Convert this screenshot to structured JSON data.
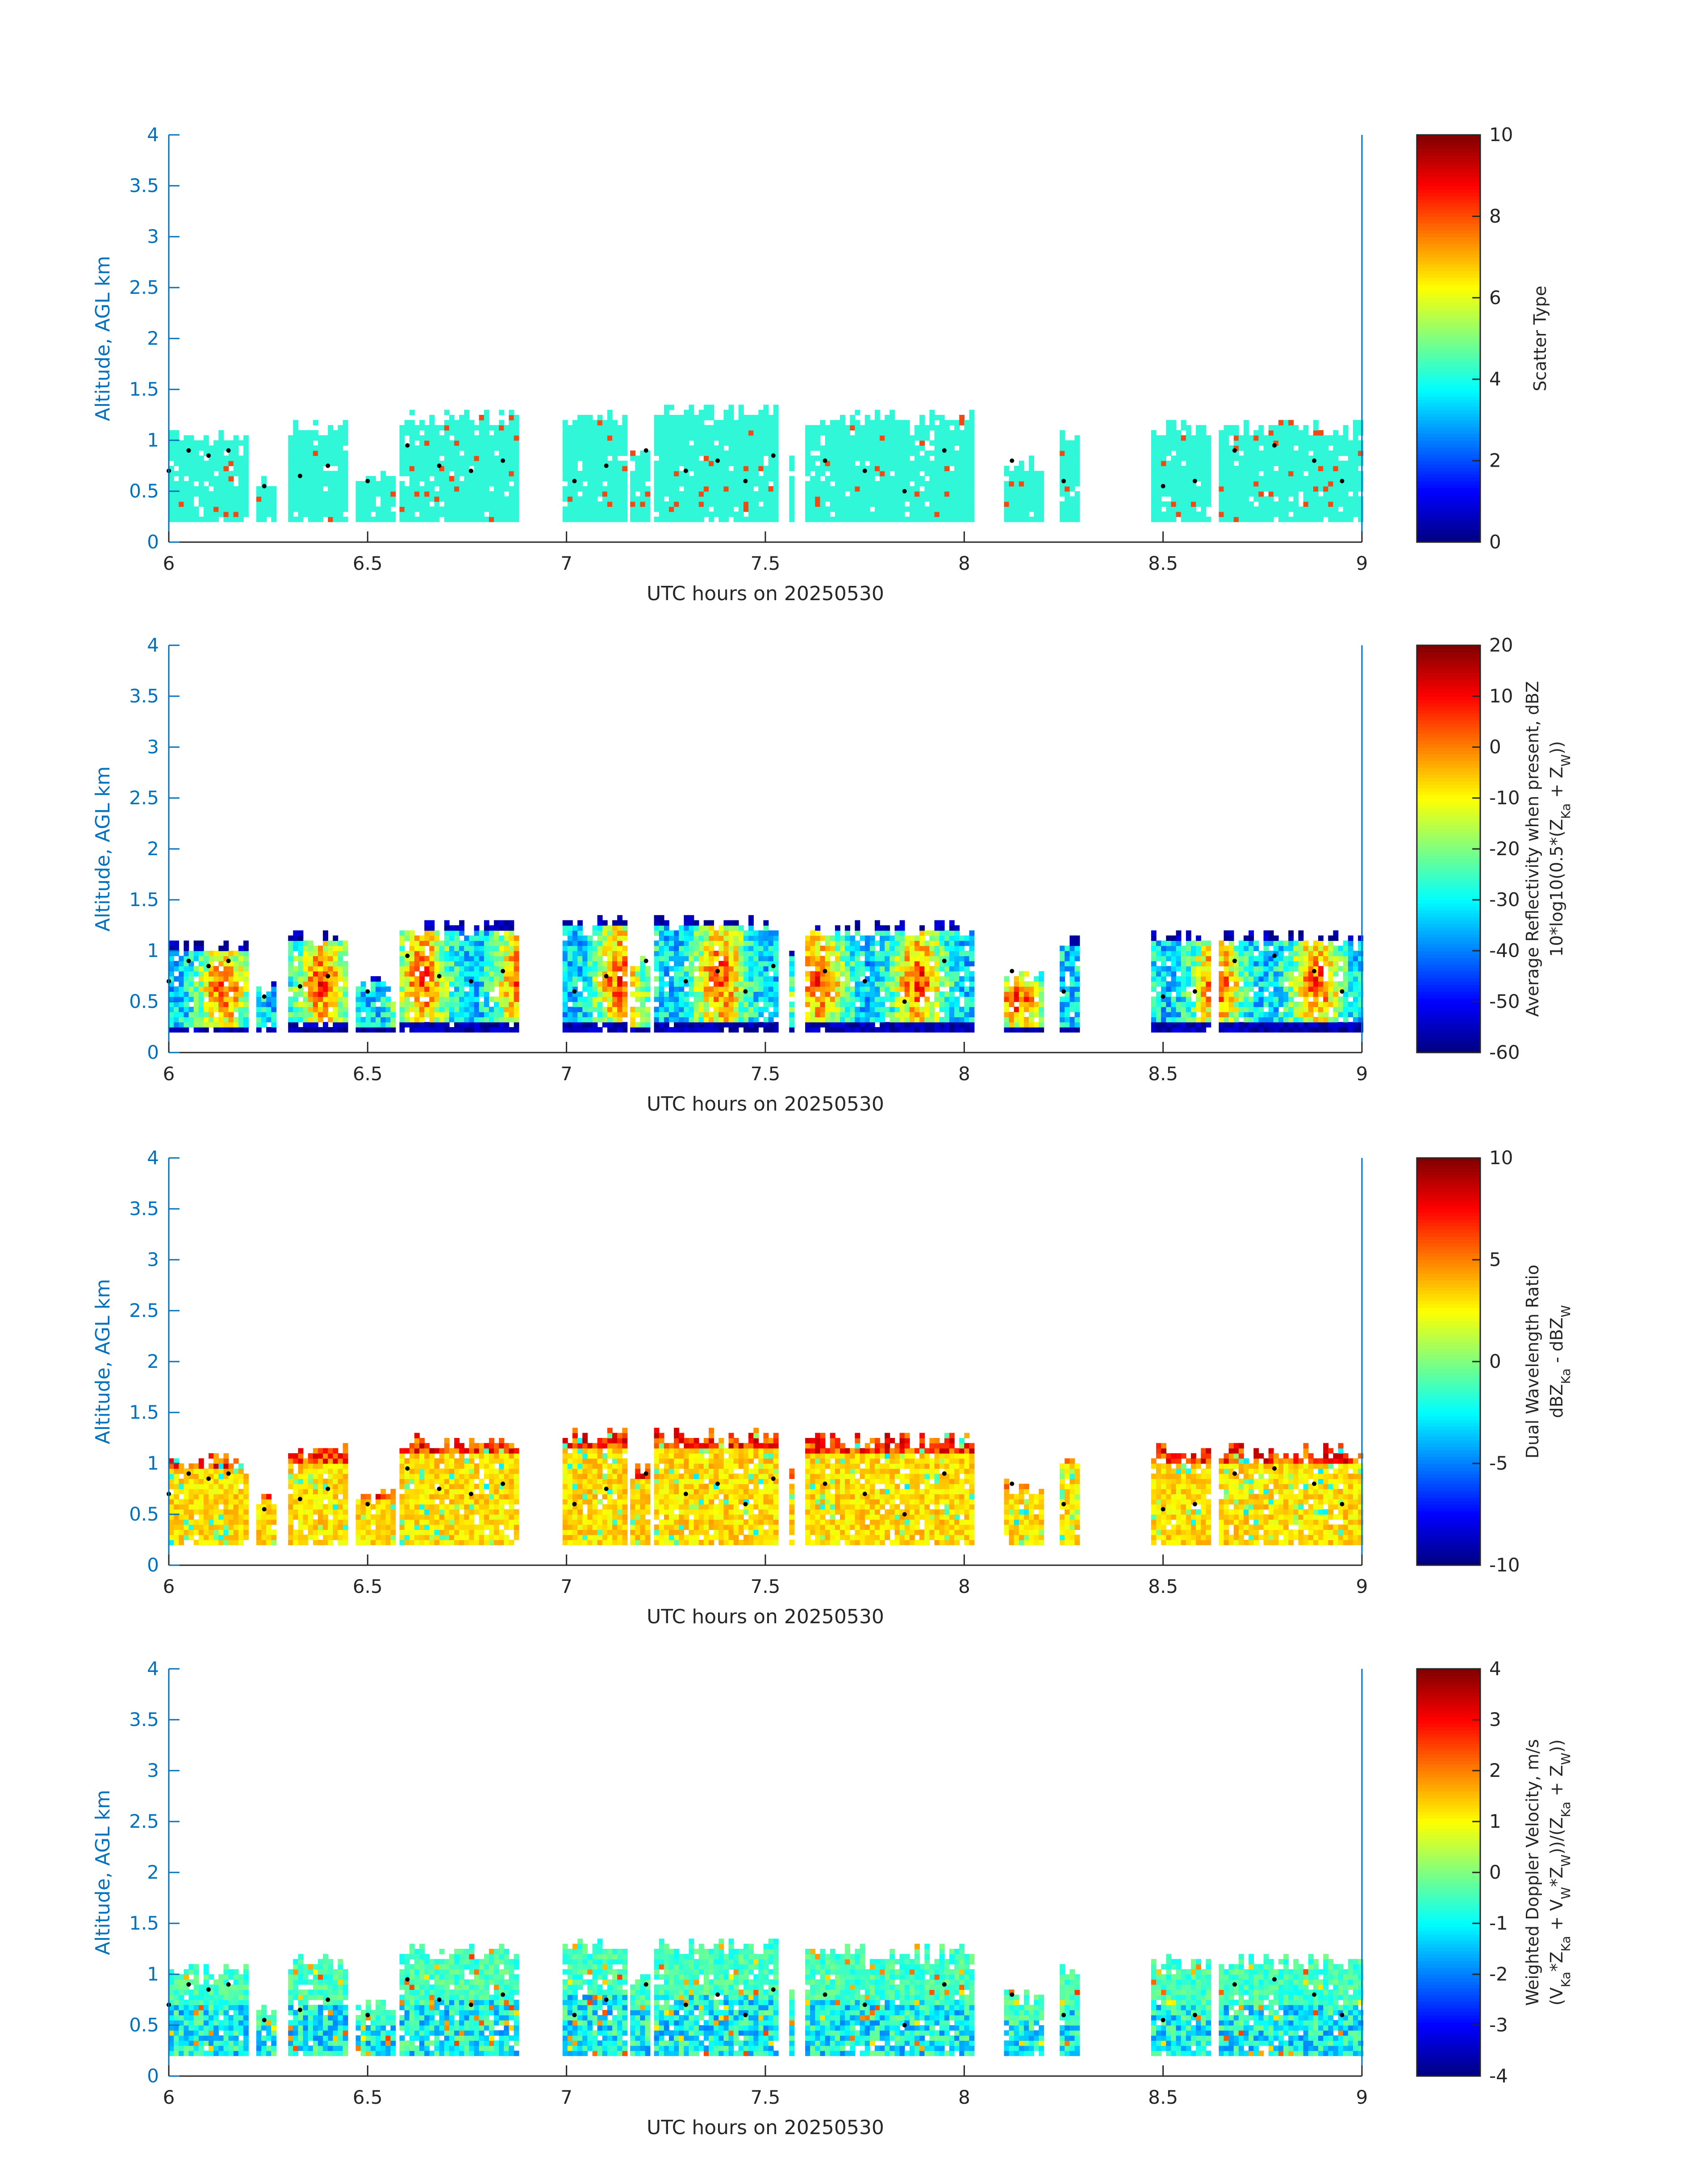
{
  "colors": {
    "axis_blue": "#0072BD",
    "axis_black": "#262626",
    "scatter_cyan": "#2ff7d8",
    "scatter_orange": "#ef4a14",
    "dot": "#000000"
  },
  "colormap": "jet",
  "chart_data": [
    {
      "type": "heatmap",
      "title": "",
      "xlabel": "UTC hours on 20250530",
      "ylabel": "Altitude, AGL km",
      "xlim": [
        6,
        9
      ],
      "ylim": [
        0,
        4
      ],
      "xticks": [
        "6",
        "6.5",
        "7",
        "7.5",
        "8",
        "8.5",
        "9"
      ],
      "yticks": [
        "0",
        "0.5",
        "1",
        "1.5",
        "2",
        "2.5",
        "3",
        "3.5",
        "4"
      ],
      "colorbar": {
        "label": [
          "Scatter Type"
        ],
        "range": [
          0,
          10
        ],
        "ticks": [
          "0",
          "2",
          "4",
          "6",
          "8",
          "10"
        ]
      },
      "seed": 11
    },
    {
      "type": "heatmap",
      "title": "",
      "xlabel": "UTC hours on 20250530",
      "ylabel": "Altitude, AGL km",
      "xlim": [
        6,
        9
      ],
      "ylim": [
        0,
        4
      ],
      "xticks": [
        "6",
        "6.5",
        "7",
        "7.5",
        "8",
        "8.5",
        "9"
      ],
      "yticks": [
        "0",
        "0.5",
        "1",
        "1.5",
        "2",
        "2.5",
        "3",
        "3.5",
        "4"
      ],
      "colorbar": {
        "label": [
          "Average Reflectivity when present, dBZ",
          "10*log10(0.5*(Z_Ka + Z_W))"
        ],
        "range": [
          -60,
          20
        ],
        "ticks": [
          "-60",
          "-50",
          "-40",
          "-30",
          "-20",
          "-10",
          "0",
          "10",
          "20"
        ]
      },
      "seed": 23
    },
    {
      "type": "heatmap",
      "title": "",
      "xlabel": "UTC hours on 20250530",
      "ylabel": "Altitude, AGL km",
      "xlim": [
        6,
        9
      ],
      "ylim": [
        0,
        4
      ],
      "xticks": [
        "6",
        "6.5",
        "7",
        "7.5",
        "8",
        "8.5",
        "9"
      ],
      "yticks": [
        "0",
        "0.5",
        "1",
        "1.5",
        "2",
        "2.5",
        "3",
        "3.5",
        "4"
      ],
      "colorbar": {
        "label": [
          "Dual Wavelength Ratio",
          "dBZ_Ka - dBZ_W"
        ],
        "range": [
          -10,
          10
        ],
        "ticks": [
          "-10",
          "-5",
          "0",
          "5",
          "10"
        ]
      },
      "seed": 37
    },
    {
      "type": "heatmap",
      "title": "",
      "xlabel": "UTC hours on 20250530",
      "ylabel": "Altitude, AGL km",
      "xlim": [
        6,
        9
      ],
      "ylim": [
        0,
        4
      ],
      "xticks": [
        "6",
        "6.5",
        "7",
        "7.5",
        "8",
        "8.5",
        "9"
      ],
      "yticks": [
        "0",
        "0.5",
        "1",
        "1.5",
        "2",
        "2.5",
        "3",
        "3.5",
        "4"
      ],
      "colorbar": {
        "label": [
          "Weighted Doppler Velocity, m/s",
          "(V_Ka*Z_Ka + V_W*Z_W))/(Z_Ka + Z_W))"
        ],
        "range": [
          -4,
          4
        ],
        "ticks": [
          "-4",
          "-3",
          "-2",
          "-1",
          "0",
          "1",
          "2",
          "3",
          "4"
        ]
      },
      "seed": 53
    }
  ],
  "cloud_layer": {
    "time_step_h": 0.0125,
    "gate_km": 0.05,
    "base_km": 0.2,
    "segments": [
      {
        "x0": 6.0,
        "x1": 6.2,
        "top": 1.1
      },
      {
        "x0": 6.22,
        "x1": 6.26,
        "top": 0.7
      },
      {
        "x0": 6.3,
        "x1": 6.44,
        "top": 1.2
      },
      {
        "x0": 6.47,
        "x1": 6.56,
        "top": 0.75
      },
      {
        "x0": 6.58,
        "x1": 6.87,
        "top": 1.3
      },
      {
        "x0": 6.99,
        "x1": 7.15,
        "top": 1.35
      },
      {
        "x0": 7.16,
        "x1": 7.2,
        "top": 1.0
      },
      {
        "x0": 7.22,
        "x1": 7.53,
        "top": 1.35
      },
      {
        "x0": 7.56,
        "x1": 7.57,
        "top": 1.0
      },
      {
        "x0": 7.6,
        "x1": 8.02,
        "top": 1.3
      },
      {
        "x0": 8.1,
        "x1": 8.2,
        "top": 0.85
      },
      {
        "x0": 8.24,
        "x1": 8.29,
        "top": 1.15
      },
      {
        "x0": 8.47,
        "x1": 8.62,
        "top": 1.2
      },
      {
        "x0": 8.64,
        "x1": 9.0,
        "top": 1.2
      }
    ],
    "cloud_base_dots_km": [
      [
        6.0,
        0.7
      ],
      [
        6.05,
        0.9
      ],
      [
        6.1,
        0.85
      ],
      [
        6.15,
        0.9
      ],
      [
        6.24,
        0.55
      ],
      [
        6.33,
        0.65
      ],
      [
        6.4,
        0.75
      ],
      [
        6.5,
        0.6
      ],
      [
        6.6,
        0.95
      ],
      [
        6.68,
        0.75
      ],
      [
        6.76,
        0.7
      ],
      [
        6.84,
        0.8
      ],
      [
        7.02,
        0.6
      ],
      [
        7.1,
        0.75
      ],
      [
        7.2,
        0.9
      ],
      [
        7.3,
        0.7
      ],
      [
        7.38,
        0.8
      ],
      [
        7.45,
        0.6
      ],
      [
        7.52,
        0.85
      ],
      [
        7.65,
        0.8
      ],
      [
        7.75,
        0.7
      ],
      [
        7.85,
        0.5
      ],
      [
        7.95,
        0.9
      ],
      [
        8.12,
        0.8
      ],
      [
        8.25,
        0.6
      ],
      [
        8.5,
        0.55
      ],
      [
        8.58,
        0.6
      ],
      [
        8.68,
        0.9
      ],
      [
        8.78,
        0.95
      ],
      [
        8.88,
        0.8
      ],
      [
        8.95,
        0.6
      ]
    ]
  }
}
